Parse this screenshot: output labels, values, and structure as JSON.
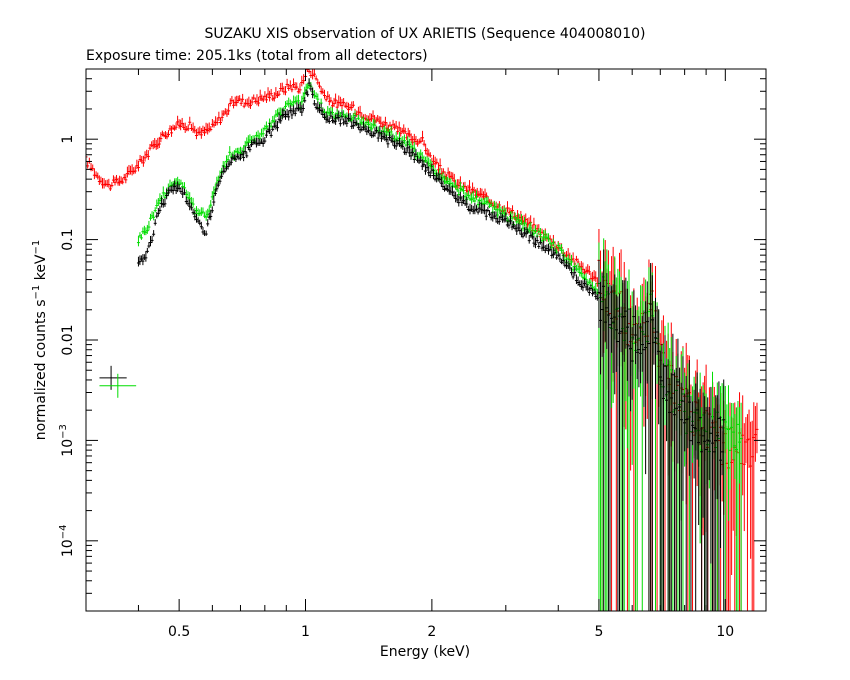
{
  "chart_data": {
    "type": "scatter",
    "title": "SUZAKU XIS observation of UX ARIETIS (Sequence 404008010)",
    "subtitle": "Exposure time: 205.1ks (total from all detectors)",
    "xlabel": "Energy (keV)",
    "ylabel_main": "normalized counts s",
    "ylabel_sup1": "−1",
    "ylabel_mid": " keV",
    "ylabel_sup2": "−1",
    "x_scale": "log",
    "y_scale": "log",
    "xlim": [
      0.3,
      12.5
    ],
    "ylim": [
      2e-05,
      5.0
    ],
    "grid": false,
    "x_ticks": [
      {
        "value": 0.5,
        "label": "0.5"
      },
      {
        "value": 1,
        "label": "1"
      },
      {
        "value": 2,
        "label": "2"
      },
      {
        "value": 5,
        "label": "5"
      },
      {
        "value": 10,
        "label": "10"
      }
    ],
    "y_ticks": [
      {
        "value": 1,
        "mant": "1",
        "exp": ""
      },
      {
        "value": 0.1,
        "mant": "0.1",
        "exp": ""
      },
      {
        "value": 0.01,
        "mant": "0.01",
        "exp": ""
      },
      {
        "value": 0.001,
        "mant": "10",
        "exp": "−3"
      },
      {
        "value": 0.0001,
        "mant": "10",
        "exp": "−4"
      }
    ],
    "series": [
      {
        "color": "#ff0000",
        "points": [
          [
            0.3,
            0.62
          ],
          [
            0.32,
            0.42
          ],
          [
            0.34,
            0.34
          ],
          [
            0.37,
            0.4
          ],
          [
            0.4,
            0.55
          ],
          [
            0.43,
            0.8
          ],
          [
            0.46,
            1.1
          ],
          [
            0.5,
            1.4
          ],
          [
            0.53,
            1.35
          ],
          [
            0.56,
            1.1
          ],
          [
            0.6,
            1.3
          ],
          [
            0.65,
            1.9
          ],
          [
            0.68,
            2.45
          ],
          [
            0.72,
            2.3
          ],
          [
            0.78,
            2.5
          ],
          [
            0.85,
            2.8
          ],
          [
            0.92,
            3.4
          ],
          [
            0.97,
            3.2
          ],
          [
            1.0,
            4.3
          ],
          [
            1.02,
            5.0
          ],
          [
            1.06,
            4.0
          ],
          [
            1.12,
            2.5
          ],
          [
            1.2,
            2.2
          ],
          [
            1.3,
            2.0
          ],
          [
            1.4,
            1.7
          ],
          [
            1.55,
            1.4
          ],
          [
            1.7,
            1.15
          ],
          [
            1.8,
            1.0
          ],
          [
            1.9,
            0.95
          ],
          [
            2.0,
            0.6
          ],
          [
            2.15,
            0.45
          ],
          [
            2.3,
            0.35
          ],
          [
            2.5,
            0.3
          ],
          [
            2.7,
            0.25
          ],
          [
            3.0,
            0.2
          ],
          [
            3.2,
            0.17
          ],
          [
            3.5,
            0.13
          ],
          [
            4.0,
            0.085
          ],
          [
            4.5,
            0.055
          ],
          [
            5.0,
            0.038
          ],
          [
            5.5,
            0.022
          ],
          [
            6.0,
            0.012
          ],
          [
            6.4,
            0.016
          ],
          [
            6.7,
            0.022
          ],
          [
            7.0,
            0.0065
          ],
          [
            7.5,
            0.0035
          ],
          [
            8.0,
            0.0022
          ],
          [
            8.5,
            0.0015
          ],
          [
            9.0,
            0.0012
          ],
          [
            9.5,
            0.001
          ],
          [
            10.0,
            0.0009
          ],
          [
            11.0,
            0.0008
          ],
          [
            12.0,
            0.0008
          ]
        ]
      },
      {
        "color": "#00dd00",
        "points": [
          [
            0.4,
            0.1
          ],
          [
            0.42,
            0.13
          ],
          [
            0.45,
            0.25
          ],
          [
            0.48,
            0.35
          ],
          [
            0.5,
            0.38
          ],
          [
            0.52,
            0.3
          ],
          [
            0.55,
            0.18
          ],
          [
            0.58,
            0.17
          ],
          [
            0.62,
            0.4
          ],
          [
            0.66,
            0.7
          ],
          [
            0.7,
            0.75
          ],
          [
            0.75,
            1.0
          ],
          [
            0.8,
            1.2
          ],
          [
            0.85,
            1.6
          ],
          [
            0.92,
            2.3
          ],
          [
            0.98,
            2.2
          ],
          [
            1.02,
            3.7
          ],
          [
            1.06,
            2.5
          ],
          [
            1.12,
            1.8
          ],
          [
            1.2,
            1.7
          ],
          [
            1.3,
            1.6
          ],
          [
            1.4,
            1.4
          ],
          [
            1.6,
            1.1
          ],
          [
            1.8,
            0.8
          ],
          [
            2.0,
            0.5
          ],
          [
            2.2,
            0.35
          ],
          [
            2.4,
            0.28
          ],
          [
            2.6,
            0.24
          ],
          [
            3.0,
            0.17
          ],
          [
            3.5,
            0.12
          ],
          [
            4.0,
            0.08
          ],
          [
            4.5,
            0.045
          ],
          [
            5.0,
            0.03
          ],
          [
            5.5,
            0.018
          ],
          [
            6.0,
            0.011
          ],
          [
            6.4,
            0.013
          ],
          [
            6.7,
            0.02
          ],
          [
            7.0,
            0.005
          ],
          [
            7.5,
            0.003
          ],
          [
            8.0,
            0.002
          ],
          [
            8.5,
            0.0015
          ],
          [
            9.0,
            0.0012
          ],
          [
            10.0,
            0.0011
          ],
          [
            11.0,
            0.001
          ]
        ]
      },
      {
        "color": "#000000",
        "points": [
          [
            0.4,
            0.06
          ],
          [
            0.42,
            0.07
          ],
          [
            0.45,
            0.21
          ],
          [
            0.48,
            0.31
          ],
          [
            0.5,
            0.33
          ],
          [
            0.52,
            0.26
          ],
          [
            0.55,
            0.15
          ],
          [
            0.58,
            0.12
          ],
          [
            0.62,
            0.35
          ],
          [
            0.66,
            0.6
          ],
          [
            0.7,
            0.62
          ],
          [
            0.75,
            0.85
          ],
          [
            0.8,
            1.0
          ],
          [
            0.85,
            1.35
          ],
          [
            0.92,
            1.9
          ],
          [
            0.98,
            1.9
          ],
          [
            1.02,
            3.4
          ],
          [
            1.06,
            2.2
          ],
          [
            1.12,
            1.6
          ],
          [
            1.2,
            1.55
          ],
          [
            1.3,
            1.45
          ],
          [
            1.4,
            1.25
          ],
          [
            1.6,
            0.95
          ],
          [
            1.8,
            0.7
          ],
          [
            2.0,
            0.45
          ],
          [
            2.2,
            0.3
          ],
          [
            2.4,
            0.22
          ],
          [
            2.6,
            0.2
          ],
          [
            3.0,
            0.15
          ],
          [
            3.5,
            0.1
          ],
          [
            4.0,
            0.065
          ],
          [
            4.5,
            0.038
          ],
          [
            5.0,
            0.026
          ],
          [
            5.5,
            0.016
          ],
          [
            6.0,
            0.01
          ],
          [
            6.4,
            0.012
          ],
          [
            6.7,
            0.018
          ],
          [
            7.0,
            0.0045
          ],
          [
            7.5,
            0.0028
          ],
          [
            8.0,
            0.0018
          ],
          [
            8.5,
            0.0014
          ],
          [
            9.0,
            0.0011
          ],
          [
            10.0,
            0.001
          ]
        ]
      }
    ],
    "legend_markers": [
      {
        "color": "#000000",
        "x": [
          0.323,
          0.375
        ],
        "y": 0.0042
      },
      {
        "color": "#00dd00",
        "x": [
          0.323,
          0.395
        ],
        "y": 0.0035
      }
    ]
  }
}
